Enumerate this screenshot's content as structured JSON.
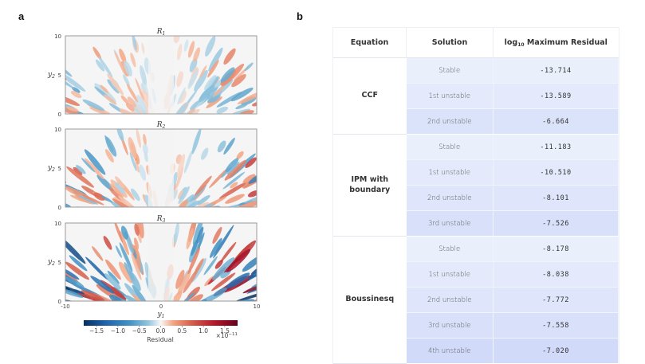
{
  "panels": {
    "a_label": "a",
    "b_label": "b"
  },
  "chart_data": [
    {
      "type": "heatmap",
      "title": "R_1",
      "title_main": "R",
      "title_sub": "1",
      "xlabel": "",
      "ylabel_main": "y",
      "ylabel_sub": "2",
      "xlim": [
        -10,
        10
      ],
      "ylim": [
        0,
        10
      ],
      "yticks": [
        "0",
        "5",
        "10"
      ],
      "xticks": [],
      "intensity": 0.45,
      "colormap": "RdBu_r",
      "pattern": "radial wave-like residual streaks, symmetric about y1=0, near-zero at center"
    },
    {
      "type": "heatmap",
      "title": "R_2",
      "title_main": "R",
      "title_sub": "2",
      "xlabel": "",
      "ylabel_main": "y",
      "ylabel_sub": "2",
      "xlim": [
        -10,
        10
      ],
      "ylim": [
        0,
        10
      ],
      "yticks": [
        "0",
        "5",
        "10"
      ],
      "xticks": [],
      "intensity": 0.6,
      "colormap": "RdBu_r",
      "pattern": "radial wave-like residual streaks, symmetric about y1=0, near-zero at center"
    },
    {
      "type": "heatmap",
      "title": "R_3",
      "title_main": "R",
      "title_sub": "3",
      "xlabel_main": "y",
      "xlabel_sub": "1",
      "ylabel_main": "y",
      "ylabel_sub": "2",
      "xlim": [
        -10,
        10
      ],
      "ylim": [
        0,
        10
      ],
      "yticks": [
        "0",
        "5",
        "10"
      ],
      "xticks": [
        "-10",
        "0",
        "10"
      ],
      "intensity": 0.95,
      "colormap": "RdBu_r",
      "pattern": "radial wave-like residual streaks, strongest at upper corners, symmetric about y1=0"
    },
    {
      "type": "colorbar",
      "label": "Residual",
      "range": [
        -1.8,
        1.8
      ],
      "ticks": [
        "−1.5",
        "−1.0",
        "−0.5",
        "0.0",
        "0.5",
        "1.0",
        "1.5"
      ],
      "tick_values": [
        -1.5,
        -1.0,
        -0.5,
        0.0,
        0.5,
        1.0,
        1.5
      ],
      "scale_label": "×10",
      "scale_exponent": "−11",
      "colors": {
        "min": "#053061",
        "mid": "#f7f7f7",
        "max": "#67001f"
      }
    },
    {
      "type": "table",
      "columns": [
        "Equation",
        "Solution",
        "log10 Maximum Residual"
      ],
      "header_col3_pre": "log",
      "header_col3_sub": "10",
      "header_col3_post": " Maximum Residual",
      "groups": [
        {
          "equation": "CCF",
          "equation_lines": [
            "CCF"
          ],
          "rows": [
            {
              "solution": "Stable",
              "value": "-13.714",
              "shade": 0.1
            },
            {
              "solution": "1st unstable",
              "value": "-13.589",
              "shade": 0.25
            },
            {
              "solution": "2nd unstable",
              "value": "-6.664",
              "shade": 0.45
            }
          ]
        },
        {
          "equation": "IPM with boundary",
          "equation_lines": [
            "IPM with",
            "boundary"
          ],
          "rows": [
            {
              "solution": "Stable",
              "value": "-11.183",
              "shade": 0.1
            },
            {
              "solution": "1st unstable",
              "value": "-10.510",
              "shade": 0.25
            },
            {
              "solution": "2nd unstable",
              "value": "-8.101",
              "shade": 0.35
            },
            {
              "solution": "3rd unstable",
              "value": "-7.526",
              "shade": 0.5
            }
          ]
        },
        {
          "equation": "Boussinesq",
          "equation_lines": [
            "Boussinesq"
          ],
          "rows": [
            {
              "solution": "Stable",
              "value": "-8.178",
              "shade": 0.1
            },
            {
              "solution": "1st unstable",
              "value": "-8.038",
              "shade": 0.25
            },
            {
              "solution": "2nd unstable",
              "value": "-7.772",
              "shade": 0.35
            },
            {
              "solution": "3rd unstable",
              "value": "-7.558",
              "shade": 0.5
            },
            {
              "solution": "4th unstable",
              "value": "-7.020",
              "shade": 0.7
            }
          ]
        }
      ],
      "shade_colors": {
        "light": "#eef2fd",
        "dark": "#c4d0f7"
      }
    }
  ]
}
